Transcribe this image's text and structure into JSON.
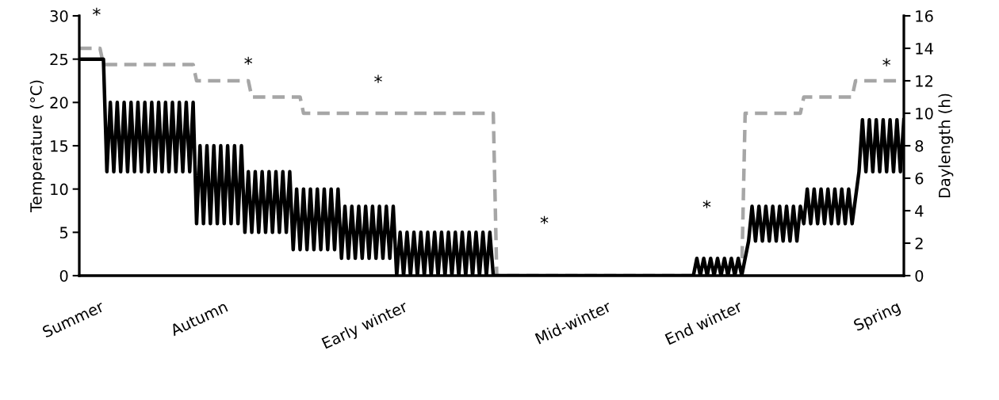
{
  "chart_data": {
    "type": "line",
    "ylabel": "Temperature (°C)",
    "y2label": "Daylength (h)",
    "categories": [
      null,
      null,
      null,
      null,
      null,
      null,
      "Summer",
      null,
      null,
      null,
      null,
      null,
      null,
      null,
      null,
      null,
      null,
      null,
      null,
      null,
      null,
      null,
      null,
      null,
      null,
      null,
      null,
      null,
      null,
      null,
      null,
      null,
      null,
      null,
      null,
      null,
      null,
      null,
      null,
      null,
      null,
      null,
      "Autumn",
      null,
      null,
      null,
      null,
      null,
      null,
      null,
      null,
      null,
      null,
      null,
      null,
      null,
      null,
      null,
      null,
      null,
      null,
      null,
      null,
      null,
      null,
      null,
      null,
      null,
      null,
      null,
      null,
      null,
      null,
      null,
      null,
      null,
      null,
      null,
      null,
      null,
      null,
      null,
      null,
      null,
      null,
      null,
      null,
      null,
      null,
      null,
      null,
      null,
      null,
      null,
      "Early winter",
      null,
      null,
      null,
      null,
      null,
      null,
      null,
      null,
      null,
      null,
      null,
      null,
      null,
      null,
      null,
      null,
      null,
      null,
      null,
      null,
      null,
      null,
      null,
      null,
      null,
      null,
      null,
      null,
      null,
      null,
      null,
      null,
      null,
      null,
      null,
      null,
      null,
      null,
      null,
      null,
      null,
      null,
      null,
      null,
      null,
      null,
      null,
      null,
      null,
      null,
      null,
      null,
      null,
      null,
      null,
      null,
      null,
      null,
      "Mid-winter",
      null,
      null,
      null,
      null,
      null,
      null,
      null,
      null,
      null,
      null,
      null,
      null,
      null,
      null,
      null,
      null,
      null,
      null,
      null,
      null,
      null,
      null,
      null,
      null,
      null,
      null,
      null,
      null,
      null,
      null,
      null,
      null,
      null,
      null,
      null,
      null,
      null,
      "End winter",
      null,
      null,
      null,
      null,
      null,
      null,
      null,
      null,
      null,
      null,
      null,
      null,
      null,
      null,
      null,
      null,
      null,
      null,
      null,
      null,
      null,
      null,
      null,
      null,
      null,
      null,
      null,
      null,
      null,
      null,
      null,
      null,
      null,
      null,
      null,
      null,
      null,
      null,
      null,
      null,
      null,
      null,
      null,
      null,
      null,
      "Spring",
      null,
      null
    ],
    "ylim": [
      0,
      30
    ],
    "yticks": [
      0,
      5,
      10,
      15,
      20,
      25,
      30
    ],
    "y2lim": [
      0,
      16
    ],
    "y2ticks": [
      0,
      2,
      4,
      6,
      8,
      10,
      12,
      14,
      16
    ],
    "marker": "none",
    "series": [
      {
        "color": "#000000",
        "line_style": "solid",
        "values": [
          25,
          25,
          25,
          25,
          25,
          25,
          25,
          25,
          12,
          20,
          12,
          20,
          12,
          20,
          12,
          20,
          12,
          20,
          12,
          20,
          12,
          20,
          12,
          20,
          12,
          20,
          12,
          20,
          12,
          20,
          12,
          20,
          12,
          20,
          6,
          15,
          6,
          15,
          6,
          15,
          6,
          15,
          6,
          15,
          6,
          15,
          6,
          15,
          5,
          12,
          5,
          12,
          5,
          12,
          5,
          12,
          5,
          12,
          5,
          12,
          5,
          12,
          3,
          10,
          3,
          10,
          3,
          10,
          3,
          10,
          3,
          10,
          3,
          10,
          3,
          10,
          2,
          8,
          2,
          8,
          2,
          8,
          2,
          8,
          2,
          8,
          2,
          8,
          2,
          8,
          2,
          8,
          0,
          5,
          0,
          5,
          0,
          5,
          0,
          5,
          0,
          5,
          0,
          5,
          0,
          5,
          0,
          5,
          0,
          5,
          0,
          5,
          0,
          5,
          0,
          5,
          0,
          5,
          0,
          5,
          0,
          0,
          0,
          0,
          0,
          0,
          0,
          0,
          0,
          0,
          0,
          0,
          0,
          0,
          0,
          0,
          0,
          0,
          0,
          0,
          0,
          0,
          0,
          0,
          0,
          0,
          0,
          0,
          0,
          0,
          0,
          0,
          0,
          0,
          0,
          0,
          0,
          0,
          0,
          0,
          0,
          0,
          0,
          0,
          0,
          0,
          0,
          0,
          0,
          0,
          0,
          0,
          0,
          0,
          0,
          0,
          0,
          0,
          0,
          2,
          0,
          2,
          0,
          2,
          0,
          2,
          0,
          2,
          0,
          2,
          0,
          2,
          0,
          null,
          4,
          8,
          4,
          8,
          4,
          8,
          4,
          8,
          4,
          8,
          4,
          8,
          4,
          8,
          4,
          8,
          6,
          10,
          6,
          10,
          6,
          10,
          6,
          10,
          6,
          10,
          6,
          10,
          6,
          10,
          6,
          null,
          12,
          18,
          12,
          18,
          12,
          18,
          12,
          18,
          12,
          18,
          12,
          18,
          12,
          18
        ]
      },
      {
        "axis": "y2",
        "color": "#a6a6a6",
        "line_style": "dashed",
        "values": [
          14,
          14,
          14,
          14,
          14,
          14,
          14,
          13,
          13,
          13,
          13,
          13,
          13,
          13,
          13,
          13,
          13,
          13,
          13,
          13,
          13,
          13,
          13,
          13,
          13,
          13,
          13,
          13,
          13,
          13,
          13,
          13,
          13,
          13,
          12,
          12,
          12,
          12,
          12,
          12,
          12,
          12,
          12,
          12,
          12,
          12,
          12,
          12,
          12,
          12,
          11,
          11,
          11,
          11,
          11,
          11,
          11,
          11,
          11,
          11,
          11,
          11,
          11,
          11,
          11,
          10,
          10,
          10,
          10,
          10,
          10,
          10,
          10,
          10,
          10,
          10,
          10,
          10,
          10,
          10,
          10,
          10,
          10,
          10,
          10,
          10,
          10,
          10,
          10,
          10,
          10,
          10,
          10,
          10,
          10,
          10,
          10,
          10,
          10,
          10,
          10,
          10,
          10,
          10,
          10,
          10,
          10,
          10,
          10,
          10,
          10,
          10,
          10,
          10,
          10,
          10,
          10,
          10,
          10,
          10,
          10,
          0,
          0,
          0,
          0,
          0,
          0,
          0,
          0,
          0,
          0,
          0,
          0,
          0,
          0,
          0,
          0,
          0,
          0,
          0,
          0,
          0,
          0,
          0,
          0,
          0,
          0,
          0,
          0,
          0,
          0,
          0,
          0,
          0,
          0,
          0,
          0,
          0,
          0,
          0,
          0,
          0,
          0,
          0,
          0,
          0,
          0,
          0,
          0,
          0,
          0,
          0,
          0,
          0,
          0,
          0,
          0,
          0,
          0,
          0,
          0,
          0,
          0,
          0,
          0,
          0,
          0,
          0,
          0,
          0,
          0,
          0,
          0,
          10,
          10,
          10,
          10,
          10,
          10,
          10,
          10,
          10,
          10,
          10,
          10,
          10,
          10,
          10,
          10,
          10,
          11,
          11,
          11,
          11,
          11,
          11,
          11,
          11,
          11,
          11,
          11,
          11,
          11,
          11,
          11,
          12,
          12,
          12,
          12,
          12,
          12,
          12,
          12,
          12,
          12,
          12,
          12,
          12,
          12,
          12
        ]
      }
    ],
    "annotations": [
      "*",
      "*",
      "*",
      "*",
      "*",
      "*"
    ]
  }
}
